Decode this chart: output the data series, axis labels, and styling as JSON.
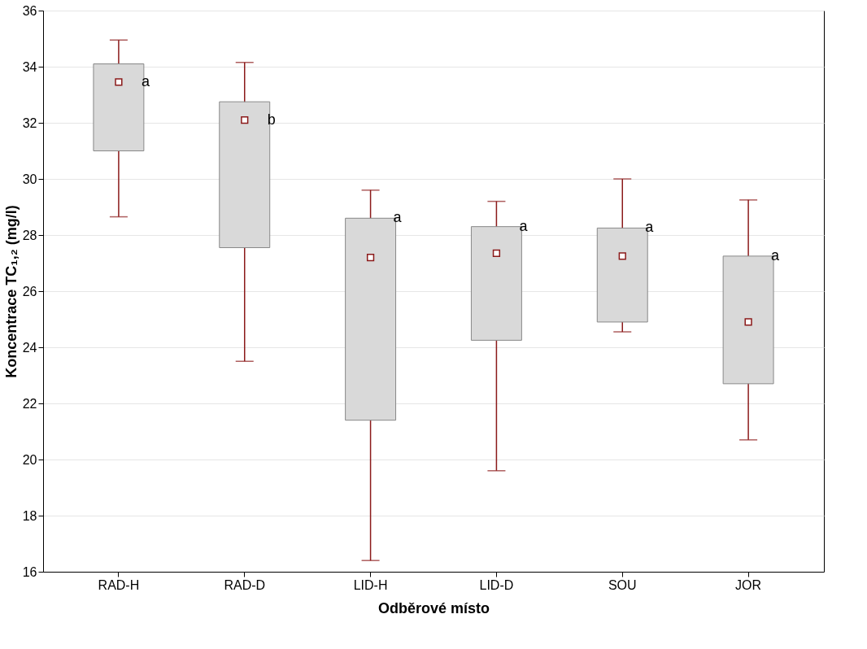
{
  "chart_data": {
    "type": "box",
    "xlabel": "Odběrové místo",
    "ylabel": "Koncentrace TC₁,₂ (mg/l)",
    "categories": [
      "RAD-H",
      "RAD-D",
      "LID-H",
      "LID-D",
      "SOU",
      "JOR"
    ],
    "boxes": [
      {
        "low": 28.65,
        "q1": 31.0,
        "median": 33.45,
        "q3": 34.1,
        "high": 34.95
      },
      {
        "low": 23.5,
        "q1": 27.55,
        "median": 32.1,
        "q3": 32.75,
        "high": 34.15
      },
      {
        "low": 16.4,
        "q1": 21.4,
        "median": 27.2,
        "q3": 28.6,
        "high": 29.6
      },
      {
        "low": 19.6,
        "q1": 24.25,
        "median": 27.35,
        "q3": 28.3,
        "high": 29.2
      },
      {
        "low": 24.55,
        "q1": 24.9,
        "median": 27.25,
        "q3": 28.25,
        "high": 30.0
      },
      {
        "low": 20.7,
        "q1": 22.7,
        "median": 24.9,
        "q3": 27.25,
        "high": 29.25
      }
    ],
    "color": "#d9d9d9",
    "marker": "square",
    "ylim": [
      16,
      36
    ],
    "yticks": [
      16,
      18,
      20,
      22,
      24,
      26,
      28,
      30,
      32,
      34,
      36
    ],
    "grid": "y",
    "annotations": [
      {
        "text": "a",
        "x": "RAD-H",
        "y": 33.45
      },
      {
        "text": "b",
        "x": "RAD-D",
        "y": 32.1
      },
      {
        "text": "a",
        "x": "LID-H",
        "y": 28.6
      },
      {
        "text": "a",
        "x": "LID-D",
        "y": 28.3
      },
      {
        "text": "a",
        "x": "SOU",
        "y": 28.25
      },
      {
        "text": "a",
        "x": "JOR",
        "y": 27.25
      }
    ]
  }
}
